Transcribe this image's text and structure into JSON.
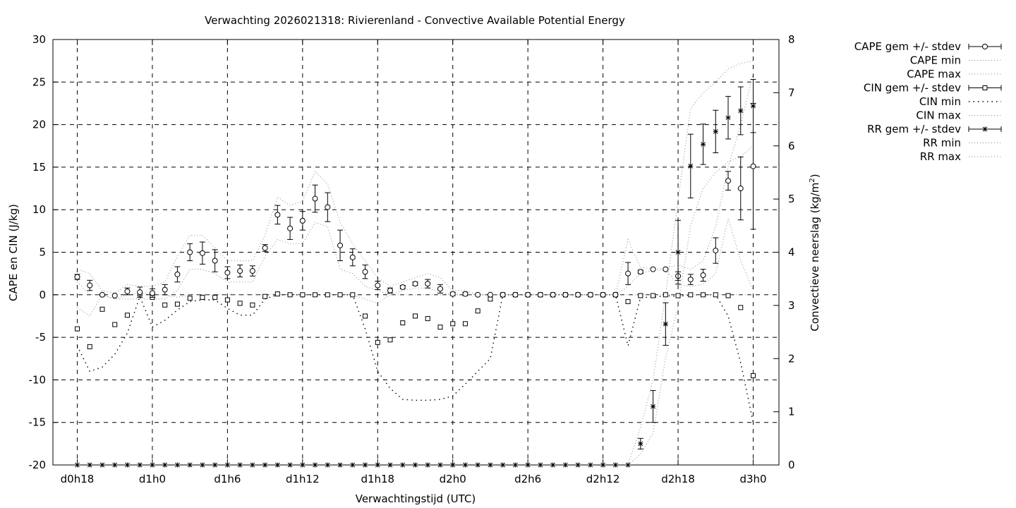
{
  "chart_data": {
    "type": "line",
    "title": "Verwachting 2026021318: Rivierenland - Convective Available Potential Energy",
    "xlabel": "Verwachtingstijd (UTC)",
    "ylabel": "CAPE en CIN (J/kg)",
    "y2label_main": "Convectieve neerslag (kg/m",
    "y2label_sup": "2",
    "y2label_end": ")",
    "xlim": [
      18,
      72
    ],
    "ylim": [
      -20,
      30
    ],
    "y2lim": [
      0,
      8
    ],
    "grid": true,
    "legend_position": "outside-right",
    "xticks": [
      {
        "x": 18,
        "label": "d0h18"
      },
      {
        "x": 24,
        "label": "d1h0"
      },
      {
        "x": 30,
        "label": "d1h6"
      },
      {
        "x": 36,
        "label": "d1h12"
      },
      {
        "x": 42,
        "label": "d1h18"
      },
      {
        "x": 48,
        "label": "d2h0"
      },
      {
        "x": 54,
        "label": "d2h6"
      },
      {
        "x": 60,
        "label": "d2h12"
      },
      {
        "x": 66,
        "label": "d2h18"
      },
      {
        "x": 72,
        "label": "d3h0"
      }
    ],
    "yticks": [
      "30",
      "25",
      "20",
      "15",
      "10",
      "5",
      "0",
      "-5",
      "-10",
      "-15",
      "-20"
    ],
    "y2ticks": [
      "8",
      "7",
      "6",
      "5",
      "4",
      "3",
      "2",
      "1",
      "0"
    ],
    "legend": [
      {
        "label": "CAPE gem +/- stdev",
        "style": "circle"
      },
      {
        "label": "CAPE min",
        "style": "dots"
      },
      {
        "label": "CAPE max",
        "style": "dots"
      },
      {
        "label": "CIN gem +/- stdev",
        "style": "square"
      },
      {
        "label": "CIN min",
        "style": "cindots"
      },
      {
        "label": "CIN max",
        "style": "dots"
      },
      {
        "label": "RR gem +/- stdev",
        "style": "star"
      },
      {
        "label": "RR min",
        "style": "dots"
      },
      {
        "label": "RR max",
        "style": "dots"
      }
    ],
    "series": [
      {
        "name": "CAPE gem +/- stdev",
        "axis": "y1",
        "x": [
          18,
          19,
          20,
          21,
          22,
          23,
          24,
          25,
          26,
          27,
          28,
          29,
          30,
          31,
          32,
          33,
          34,
          35,
          36,
          37,
          38,
          39,
          40,
          41,
          42,
          43,
          44,
          45,
          46,
          47,
          48,
          49,
          50,
          51,
          52,
          53,
          54,
          55,
          56,
          57,
          58,
          59,
          60,
          61,
          62,
          63,
          64,
          65,
          66,
          67,
          68,
          69,
          70,
          71,
          72
        ],
        "mean": [
          2.1,
          1.1,
          0,
          -0.1,
          0.4,
          0.3,
          0.2,
          0.6,
          2.4,
          5.0,
          4.9,
          4.0,
          2.6,
          2.8,
          2.8,
          5.5,
          9.4,
          7.8,
          8.7,
          11.3,
          10.3,
          5.8,
          4.4,
          2.7,
          1.1,
          0.5,
          0.9,
          1.3,
          1.3,
          0.7,
          0.1,
          0.1,
          0,
          0,
          0,
          0,
          0,
          0,
          0,
          0,
          0,
          0,
          0,
          0,
          2.5,
          2.7,
          3.0,
          3.0,
          2.2,
          1.8,
          2.3,
          5.2,
          13.4,
          12.5,
          15.1
        ],
        "stdev": [
          0.3,
          0.6,
          0,
          0,
          0.4,
          0.6,
          0.5,
          0.6,
          0.9,
          1.0,
          1.3,
          1.3,
          0.7,
          0.7,
          0.6,
          0.4,
          1.1,
          1.3,
          1.1,
          1.6,
          1.7,
          1.8,
          1.0,
          0.8,
          0.5,
          0.3,
          0.2,
          0.2,
          0.5,
          0.5,
          0.2,
          0.2,
          0,
          0,
          0,
          0,
          0,
          0,
          0,
          0,
          0,
          0,
          0,
          0,
          1.3,
          0.2,
          0,
          0,
          0.5,
          0.6,
          0.7,
          1.5,
          1.1,
          3.7,
          7.4
        ]
      },
      {
        "name": "CAPE min",
        "axis": "y1",
        "x": [
          18,
          19,
          20,
          21,
          22,
          23,
          24,
          25,
          26,
          27,
          28,
          29,
          30,
          31,
          32,
          33,
          34,
          35,
          36,
          37,
          38,
          39,
          40,
          41,
          42,
          43,
          44,
          45,
          46,
          47,
          48,
          49,
          50,
          51,
          52,
          53,
          54,
          55,
          56,
          57,
          58,
          59,
          60,
          61,
          62,
          63,
          64,
          65,
          66,
          67,
          68,
          69,
          70,
          71,
          72
        ],
        "values": [
          1.5,
          0,
          0,
          -0.5,
          -0.5,
          -0.5,
          -0.5,
          -0.5,
          0.5,
          3.0,
          3.0,
          2.5,
          1.5,
          1.5,
          1.5,
          4.5,
          6.5,
          6.0,
          6.0,
          8.5,
          8.0,
          3.0,
          2.5,
          1.0,
          0.5,
          0,
          0.5,
          0.8,
          0.8,
          0.3,
          0,
          0,
          0,
          0,
          0,
          0,
          0,
          0,
          0,
          0,
          0,
          0,
          0,
          0,
          1.0,
          2.5,
          2.9,
          2.9,
          1.2,
          1.0,
          1.2,
          2.5,
          9.0,
          4.0,
          0.5
        ]
      },
      {
        "name": "CAPE max",
        "axis": "y1",
        "x": [
          18,
          19,
          20,
          21,
          22,
          23,
          24,
          25,
          26,
          27,
          28,
          29,
          30,
          31,
          32,
          33,
          34,
          35,
          36,
          37,
          38,
          39,
          40,
          41,
          42,
          43,
          44,
          45,
          46,
          47,
          48,
          49,
          50,
          51,
          52,
          53,
          54,
          55,
          56,
          57,
          58,
          59,
          60,
          61,
          62,
          63,
          64,
          65,
          66,
          67,
          68,
          69,
          70,
          71,
          72
        ],
        "values": [
          3.0,
          2.5,
          0.5,
          0.2,
          1.2,
          1.0,
          1.0,
          1.5,
          4.5,
          7.0,
          7.0,
          5.5,
          4.0,
          4.0,
          4.0,
          7.0,
          11.5,
          10.5,
          11.0,
          14.5,
          13.0,
          8.5,
          6.0,
          4.0,
          2.0,
          1.0,
          1.5,
          2.0,
          2.5,
          2.0,
          0.5,
          0.5,
          0,
          0,
          0,
          0,
          0,
          0,
          0,
          0,
          0,
          0,
          0,
          0,
          6.5,
          3.2,
          3.1,
          3.1,
          3.5,
          3.0,
          4.0,
          8.0,
          15.0,
          20.0,
          26.0
        ]
      },
      {
        "name": "CIN gem +/- stdev",
        "axis": "y1",
        "x": [
          18,
          19,
          20,
          21,
          22,
          23,
          24,
          25,
          26,
          27,
          28,
          29,
          30,
          31,
          32,
          33,
          34,
          35,
          36,
          37,
          38,
          39,
          40,
          41,
          42,
          43,
          44,
          45,
          46,
          47,
          48,
          49,
          50,
          51,
          52,
          53,
          54,
          55,
          56,
          57,
          58,
          59,
          60,
          61,
          62,
          63,
          64,
          65,
          66,
          67,
          68,
          69,
          70,
          71,
          72
        ],
        "mean": [
          -4.0,
          -6.1,
          -1.7,
          -3.5,
          -2.4,
          0.1,
          -0.3,
          -1.2,
          -1.1,
          -0.4,
          -0.3,
          -0.3,
          -0.6,
          -1.0,
          -1.2,
          -0.2,
          0.1,
          0,
          0,
          0,
          0,
          0,
          0,
          -2.5,
          -5.6,
          -5.3,
          -3.3,
          -2.5,
          -2.8,
          -3.8,
          -3.4,
          -3.4,
          -1.9,
          -0.5,
          0,
          0,
          0,
          0,
          0,
          0,
          0,
          0,
          0,
          0,
          -0.8,
          -0.1,
          -0.1,
          0,
          -0.1,
          0,
          0,
          0,
          -0.1,
          -1.5,
          -9.5
        ]
      },
      {
        "name": "CIN min",
        "axis": "y1",
        "x": [
          18,
          19,
          20,
          21,
          22,
          23,
          24,
          25,
          26,
          27,
          28,
          29,
          30,
          31,
          32,
          33,
          34,
          35,
          36,
          37,
          38,
          39,
          40,
          41,
          42,
          43,
          44,
          45,
          46,
          47,
          48,
          49,
          50,
          51,
          52,
          53,
          54,
          55,
          56,
          57,
          58,
          59,
          60,
          61,
          62,
          63,
          64,
          65,
          66,
          67,
          68,
          69,
          70,
          71,
          72
        ],
        "values": [
          -6.0,
          -9.0,
          -8.5,
          -7.0,
          -4.5,
          -0.2,
          -3.8,
          -3.0,
          -1.8,
          -0.8,
          -0.6,
          -0.6,
          -1.6,
          -2.4,
          -2.4,
          -0.5,
          0,
          0,
          0,
          0,
          0,
          0,
          0,
          -4.0,
          -9.0,
          -11.0,
          -12.3,
          -12.4,
          -12.4,
          -12.3,
          -11.9,
          -10.5,
          -9.0,
          -7.5,
          0,
          0,
          0,
          0,
          0,
          0,
          0,
          0,
          0,
          0,
          -6.0,
          -0.3,
          -0.3,
          -0.1,
          -0.2,
          0,
          0,
          0,
          -2.5,
          -8.0,
          -15.0
        ]
      },
      {
        "name": "CIN max",
        "axis": "y1",
        "x": [
          18,
          19,
          20,
          21,
          22,
          23,
          24,
          25,
          26,
          27,
          28,
          29,
          30,
          31,
          32,
          33,
          34,
          35,
          36,
          37,
          38,
          39,
          40,
          41,
          42,
          43,
          44,
          45,
          46,
          47,
          48,
          49,
          50,
          51,
          52,
          53,
          54,
          55,
          56,
          57,
          58,
          59,
          60,
          61,
          62,
          63,
          64,
          65,
          66,
          67,
          68,
          69,
          70,
          71,
          72
        ],
        "values": [
          -1.5,
          -2.5,
          0,
          -0.5,
          0,
          0.2,
          0,
          0,
          -0.3,
          0,
          0,
          0,
          0,
          0,
          0,
          0,
          0.1,
          0,
          0,
          0,
          0,
          0,
          0,
          -0.5,
          -1.0,
          0,
          0,
          0,
          0,
          0,
          0,
          0,
          0,
          0,
          0,
          0,
          0,
          0,
          0,
          0,
          0,
          0,
          0,
          0,
          0,
          0,
          0,
          0,
          0,
          0,
          0,
          0,
          0,
          0,
          0
        ]
      },
      {
        "name": "RR gem +/- stdev",
        "axis": "y2",
        "x": [
          18,
          19,
          20,
          21,
          22,
          23,
          24,
          25,
          26,
          27,
          28,
          29,
          30,
          31,
          32,
          33,
          34,
          35,
          36,
          37,
          38,
          39,
          40,
          41,
          42,
          43,
          44,
          45,
          46,
          47,
          48,
          49,
          50,
          51,
          52,
          53,
          54,
          55,
          56,
          57,
          58,
          59,
          60,
          61,
          62,
          63,
          64,
          65,
          66,
          67,
          68,
          69,
          70,
          71,
          72
        ],
        "mean": [
          0,
          0,
          0,
          0,
          0,
          0,
          0,
          0,
          0,
          0,
          0,
          0,
          0,
          0,
          0,
          0,
          0,
          0,
          0,
          0,
          0,
          0,
          0,
          0,
          0,
          0,
          0,
          0,
          0,
          0,
          0,
          0,
          0,
          0,
          0,
          0,
          0,
          0,
          0,
          0,
          0,
          0,
          0,
          0,
          0,
          0.4,
          1.1,
          2.65,
          4.0,
          5.62,
          6.03,
          6.27,
          6.53,
          6.66,
          6.75
        ],
        "stdev": [
          0,
          0,
          0,
          0,
          0,
          0,
          0,
          0,
          0,
          0,
          0,
          0,
          0,
          0,
          0,
          0,
          0,
          0,
          0,
          0,
          0,
          0,
          0,
          0,
          0,
          0,
          0,
          0,
          0,
          0,
          0,
          0,
          0,
          0,
          0,
          0,
          0,
          0,
          0,
          0,
          0,
          0,
          0,
          0,
          0,
          0.1,
          0.3,
          0.4,
          0.6,
          0.6,
          0.38,
          0.4,
          0.4,
          0.45,
          0.5
        ]
      },
      {
        "name": "RR min",
        "axis": "y2",
        "x": [
          62,
          63,
          64,
          65,
          66,
          67,
          68,
          69,
          70,
          71,
          72
        ],
        "values": [
          0,
          0.2,
          0.6,
          2.0,
          3.0,
          4.5,
          5.2,
          5.5,
          5.7,
          5.8,
          6.0
        ]
      },
      {
        "name": "RR max",
        "axis": "y2",
        "x": [
          62,
          63,
          64,
          65,
          66,
          67,
          68,
          69,
          70,
          71,
          72
        ],
        "values": [
          0,
          0.7,
          1.6,
          3.2,
          5.0,
          6.7,
          7.0,
          7.2,
          7.45,
          7.55,
          7.6
        ]
      }
    ]
  }
}
